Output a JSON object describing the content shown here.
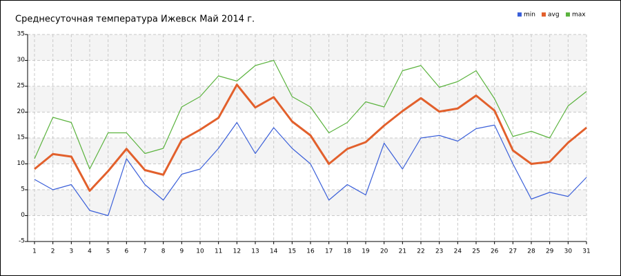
{
  "chart_data": {
    "type": "line",
    "title": "Среднесуточная температура Ижевск  Май 2014 г.",
    "categories": [
      "1",
      "2",
      "3",
      "4",
      "5",
      "6",
      "7",
      "8",
      "9",
      "10",
      "11",
      "12",
      "13",
      "14",
      "15",
      "16",
      "17",
      "18",
      "19",
      "20",
      "21",
      "22",
      "23",
      "24",
      "25",
      "26",
      "27",
      "28",
      "29",
      "30",
      "31"
    ],
    "series": [
      {
        "name": "min",
        "color": "#3a5fd9",
        "values": [
          7,
          5,
          6,
          1,
          0,
          11,
          6,
          3,
          8,
          9,
          13,
          18,
          12,
          17,
          13,
          10,
          3,
          6,
          4,
          14,
          9,
          15,
          15.5,
          14.4,
          16.8,
          17.5,
          10,
          3.2,
          4.5,
          3.7,
          7.4
        ]
      },
      {
        "name": "avg",
        "color": "#e2602c",
        "values": [
          9,
          11.9,
          11.4,
          4.8,
          8.6,
          12.9,
          8.8,
          7.9,
          14.6,
          16.6,
          18.9,
          25.3,
          20.9,
          22.9,
          18.2,
          15.5,
          10,
          12.9,
          14.2,
          17.4,
          20.2,
          22.7,
          20.1,
          20.7,
          23.2,
          20.3,
          12.6,
          10,
          10.4,
          14.1,
          17
        ]
      },
      {
        "name": "max",
        "color": "#5bb33e",
        "values": [
          11,
          19,
          18,
          9,
          16,
          16,
          12,
          13,
          21,
          23,
          27,
          26,
          29,
          30,
          23,
          21,
          16,
          18,
          22,
          21,
          28,
          29,
          24.8,
          25.9,
          28,
          22.6,
          15.3,
          16.3,
          15,
          21.2,
          24
        ]
      }
    ],
    "ylim": [
      -5,
      35
    ],
    "yticks": [
      -5,
      0,
      5,
      10,
      15,
      20,
      25,
      30,
      35
    ],
    "grid": true,
    "legend": "top-right"
  }
}
